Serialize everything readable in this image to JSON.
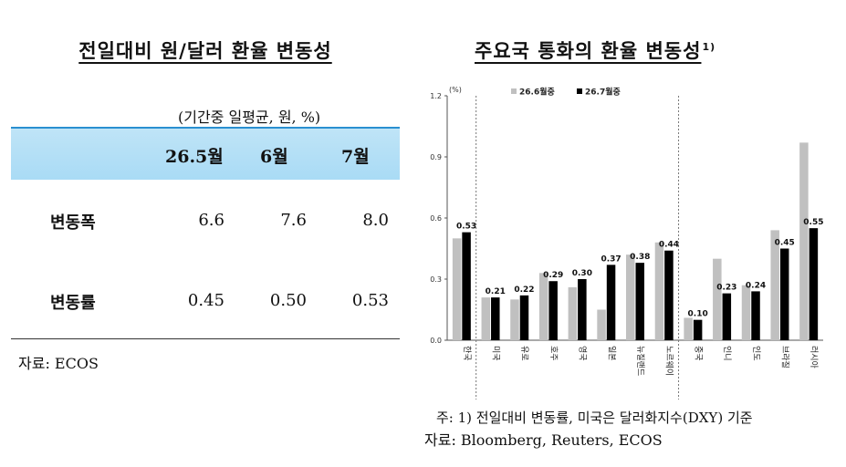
{
  "left": {
    "title": "전일대비 원/달러 환율 변동성",
    "unit": "(기간중 일평균, 원, %)",
    "headers": [
      "26.5월",
      "6월",
      "7월"
    ],
    "rows": [
      {
        "label": "변동폭",
        "values": [
          "6.6",
          "7.6",
          "8.0"
        ]
      },
      {
        "label": "변동률",
        "values": [
          "0.45",
          "0.50",
          "0.53"
        ]
      }
    ],
    "source": "자료:  ECOS"
  },
  "right": {
    "title": "주요국 통화의 환율 변동성",
    "title_sup": "1)",
    "note": "주:  1)  전일대비 변동률, 미국은 달러화지수(DXY) 기준",
    "source": "자료:  Bloomberg,  Reuters,  ECOS"
  },
  "chart_data": {
    "type": "bar",
    "unit_label": "(%)",
    "categories": [
      "한국",
      "미국",
      "유로",
      "호주",
      "영국",
      "일본",
      "뉴질랜드",
      "노르웨이",
      "중국",
      "인니",
      "인도",
      "브라질",
      "러시아"
    ],
    "series": [
      {
        "name": "26.6월중",
        "color": "#c0c0c0",
        "values": [
          0.5,
          0.21,
          0.2,
          0.33,
          0.26,
          0.15,
          0.42,
          0.48,
          0.11,
          0.4,
          0.27,
          0.54,
          0.97
        ]
      },
      {
        "name": "26.7월중",
        "color": "#000000",
        "values": [
          0.53,
          0.21,
          0.22,
          0.29,
          0.3,
          0.37,
          0.38,
          0.44,
          0.1,
          0.23,
          0.24,
          0.45,
          0.55
        ]
      }
    ],
    "data_labels": [
      "0.53",
      "0.21",
      "0.22",
      "0.29",
      "0.30",
      "0.37",
      "0.38",
      "0.44",
      "0.10",
      "0.23",
      "0.24",
      "0.45",
      "0.55"
    ],
    "ylim": [
      0,
      1.2
    ],
    "yticks": [
      "0.0",
      "0.3",
      "0.6",
      "0.9",
      "1.2"
    ],
    "legend_position": "top"
  }
}
